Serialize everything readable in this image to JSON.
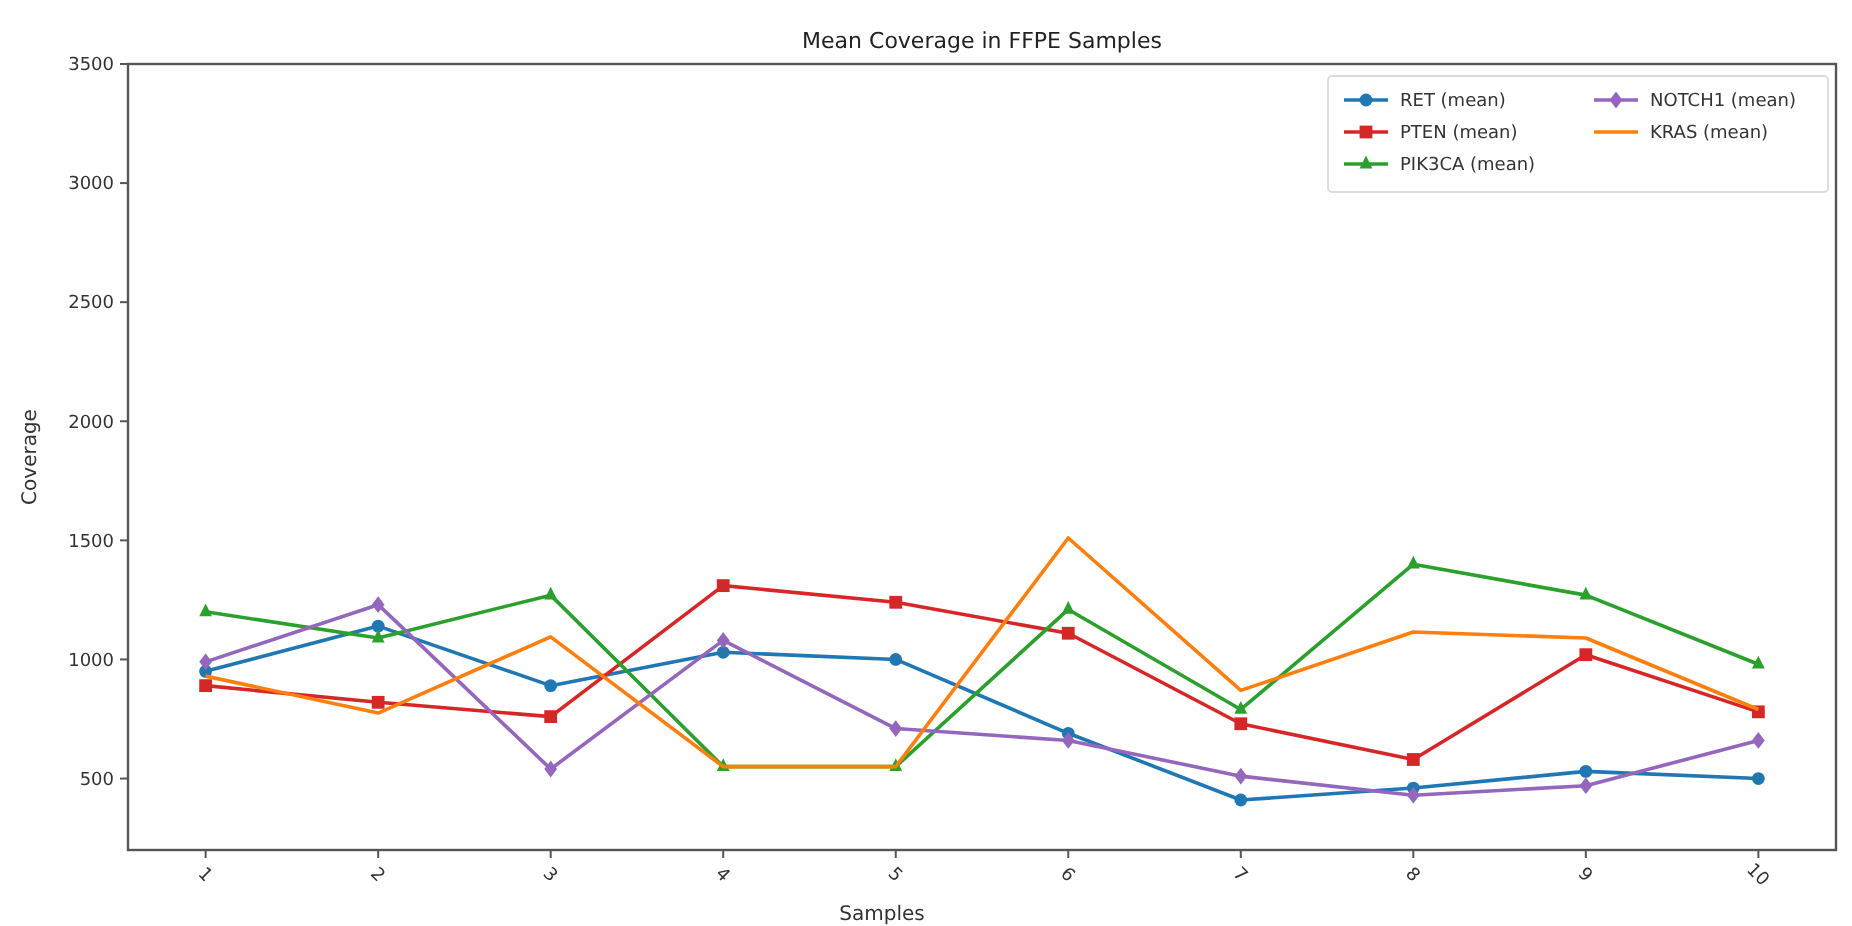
{
  "chart_data": {
    "type": "line",
    "title": "Mean Coverage in FFPE Samples",
    "xlabel": "Samples",
    "ylabel": "Coverage",
    "x": [
      1,
      2,
      3,
      4,
      5,
      6,
      7,
      8,
      9,
      10
    ],
    "xlim": [
      0.55,
      10.45
    ],
    "xticks": [
      1,
      2,
      3,
      4,
      5,
      6,
      7,
      8,
      9,
      10
    ],
    "ylim": [
      200,
      3500
    ],
    "yticks": [
      500,
      1000,
      1500,
      2000,
      2500,
      3000,
      3500
    ],
    "grid": false,
    "legend": "top right",
    "line_style": "solid",
    "series": [
      {
        "name": "RET (mean)",
        "color": "#1f77b4",
        "marker": "circle",
        "values": [
          950,
          1140,
          890,
          1030,
          1000,
          690,
          410,
          460,
          530,
          500
        ]
      },
      {
        "name": "PTEN (mean)",
        "color": "#d62728",
        "marker": "square",
        "values": [
          890,
          820,
          760,
          1310,
          1240,
          1110,
          730,
          580,
          1020,
          780
        ]
      },
      {
        "name": "PIK3CA (mean)",
        "color": "#2ca02c",
        "marker": "triangle",
        "values": [
          1200,
          1090,
          1270,
          550,
          550,
          1210,
          790,
          1400,
          1270,
          980
        ]
      },
      {
        "name": "NOTCH1 (mean)",
        "color": "#9467bd",
        "marker": "diamond",
        "values": [
          990,
          1230,
          540,
          1080,
          710,
          660,
          510,
          430,
          470,
          660
        ]
      },
      {
        "name": "KRAS (mean)",
        "color": "#ff7f0e",
        "marker": "none",
        "values": [
          930,
          775,
          1095,
          550,
          550,
          1510,
          870,
          1115,
          1090,
          790
        ]
      }
    ]
  }
}
